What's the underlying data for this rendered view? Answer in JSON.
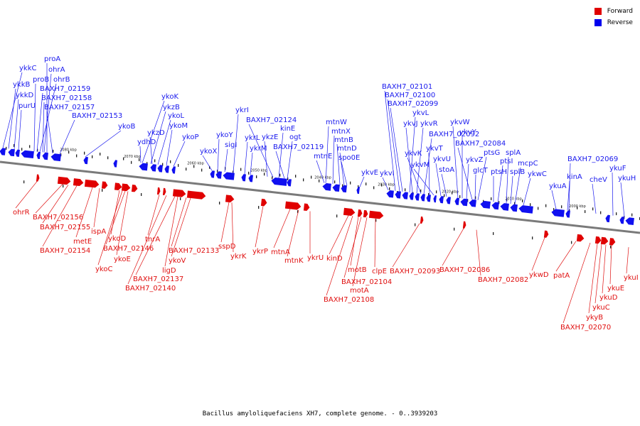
{
  "legend": [
    {
      "label": "Forward",
      "color": "#e00000"
    },
    {
      "label": "Reverse",
      "color": "#0000ee"
    }
  ],
  "caption": "Bacillus amyloliquefaciens XH7, complete genome. - 0..3939203",
  "colors": {
    "forward": "#e00000",
    "reverse": "#1010f0",
    "axis": "#888888"
  },
  "ticks": [
    "2080 kbp",
    "2070 kbp",
    "2060 kbp",
    "2050 kbp",
    "2040 kbp",
    "2030 kbp",
    "2020 kbp",
    "2010 kbp",
    "2000 kbp"
  ],
  "reverse_labels": [
    "proA",
    "ohrA",
    "ykkC",
    "ohrB",
    "proB",
    "ykkB",
    "BAXH7_02159",
    "ykkD",
    "BAXH7_02158",
    "purU",
    "BAXH7_02157",
    "BAXH7_02153",
    "ykoB",
    "ykoK",
    "ykzB",
    "ykoL",
    "ykoM",
    "ykzD",
    "ydhD",
    "ykoP",
    "ykoX",
    "ykoY",
    "sigI",
    "ykrI",
    "ykrL",
    "ykrM",
    "BAXH7_02124",
    "ykzE",
    "kinE",
    "ogt",
    "BAXH7_02119",
    "mtnW",
    "mtnX",
    "mtnB",
    "mtnD",
    "mtnE",
    "spo0E",
    "ykvE",
    "ykvI",
    "BAXH7_02101",
    "BAXH7_02100",
    "BAXH7_02099",
    "ykvL",
    "ykvR",
    "ykvJ",
    "BAXH7_02092",
    "ykvK",
    "ykvT",
    "ykvM",
    "ykvU",
    "stoA",
    "ykvW",
    "ykvY",
    "BAXH7_02084",
    "ykvZ",
    "ptsG",
    "glcT",
    "ptsI",
    "ptsH",
    "splA",
    "mcpC",
    "splB",
    "ykwC",
    "BAXH7_02069",
    "kinA",
    "ykuA",
    "cheV",
    "ykuF",
    "ykuH"
  ],
  "forward_labels": [
    "ohrR",
    "BAXH7_02156",
    "BAXH7_02155",
    "BAXH7_02154",
    "ispA",
    "metE",
    "ykoD",
    "BAXH7_02146",
    "ykoE",
    "ykoC",
    "tnrA",
    "BAXH7_02133",
    "ykoV",
    "ligD",
    "BAXH7_02137",
    "BAXH7_02140",
    "sspD",
    "ykrK",
    "ykrP",
    "mtnA",
    "mtnK",
    "ykrU",
    "kinD",
    "motB",
    "clpE",
    "BAXH7_02104",
    "motA",
    "BAXH7_02108",
    "BAXH7_02093",
    "BAXH7_02086",
    "BAXH7_02082",
    "ykwD",
    "patA",
    "ykuE",
    "ykuD",
    "ykuC",
    "ykyB",
    "BAXH7_02070",
    "ykuI"
  ]
}
